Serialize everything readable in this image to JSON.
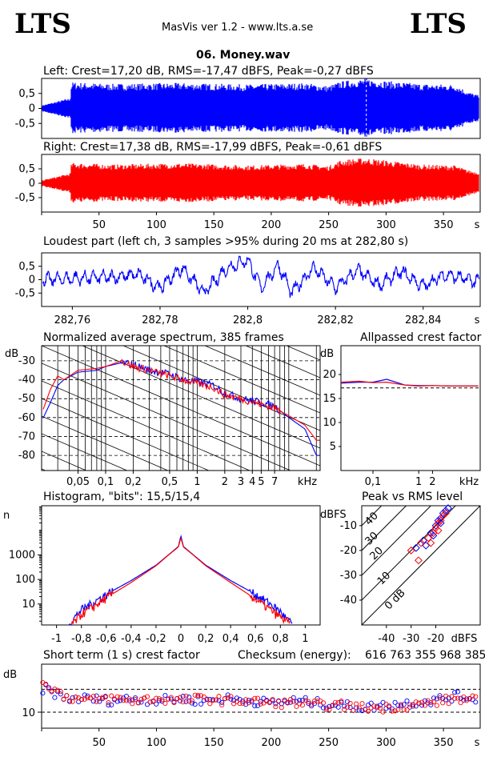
{
  "header": {
    "logo_left": "LTS",
    "logo_right": "LTS",
    "app_info": "MasVis ver 1.2 - www.lts.a.se",
    "track_title": "06. Money.wav"
  },
  "colors": {
    "left": "#0000ff",
    "right": "#ff0000",
    "axis": "#000000",
    "background": "#ffffff"
  },
  "chart_data": [
    {
      "id": "left_waveform",
      "type": "line",
      "title": "Left: Crest=17,20 dB, RMS=-17,47 dBFS, Peak=-0,27 dBFS",
      "ylim": [
        -1,
        1
      ],
      "yticks": [
        "0,5",
        "0",
        "-0,5"
      ],
      "xlim": [
        0,
        382
      ],
      "marker_at_s": 282.8,
      "series": [
        {
          "color": "#0000ff",
          "x": [
            0,
            10,
            25,
            26,
            60,
            120,
            180,
            230,
            250,
            260,
            270,
            282.8,
            300,
            330,
            360,
            372,
            380
          ],
          "amplitude": [
            0.1,
            0.2,
            0.35,
            0.88,
            0.82,
            0.85,
            0.8,
            0.85,
            0.75,
            0.9,
            0.95,
            1.0,
            0.92,
            0.82,
            0.8,
            0.55,
            0.45
          ]
        }
      ]
    },
    {
      "id": "right_waveform",
      "type": "line",
      "title": "Right: Crest=17,38 dB, RMS=-17,99 dBFS, Peak=-0,61 dBFS",
      "ylim": [
        -1,
        1
      ],
      "yticks": [
        "0,5",
        "0",
        "-0,5"
      ],
      "xlim": [
        0,
        382
      ],
      "xticks": [
        "50",
        "100",
        "150",
        "200",
        "250",
        "300",
        "350"
      ],
      "xunit": "s",
      "series": [
        {
          "color": "#ff0000",
          "x": [
            0,
            10,
            25,
            26,
            60,
            120,
            180,
            230,
            250,
            260,
            270,
            282.8,
            300,
            330,
            360,
            372,
            380
          ],
          "amplitude": [
            0.1,
            0.2,
            0.35,
            0.72,
            0.65,
            0.7,
            0.62,
            0.68,
            0.6,
            0.8,
            0.85,
            0.88,
            0.8,
            0.65,
            0.62,
            0.45,
            0.4
          ]
        }
      ]
    },
    {
      "id": "loudest_part",
      "type": "line",
      "title": "Loudest part (left  ch, 3 samples >95% during 20 ms at 282,80 s)",
      "ylim": [
        -1,
        1
      ],
      "yticks": [
        "0,5",
        "0",
        "-0,5"
      ],
      "xlim": [
        282.753,
        282.853
      ],
      "xticks": [
        "282,76",
        "282,78",
        "282,8",
        "282,82",
        "282,84"
      ],
      "xunit": "s",
      "series": [
        {
          "color": "#0000ff",
          "x": [
            282.753,
            282.76,
            282.77,
            282.775,
            282.78,
            282.785,
            282.79,
            282.795,
            282.8,
            282.803,
            282.807,
            282.81,
            282.815,
            282.82,
            282.825,
            282.83,
            282.835,
            282.84,
            282.845,
            282.853
          ],
          "y": [
            0.0,
            0.05,
            0.1,
            0.2,
            -0.3,
            0.45,
            -0.5,
            0.4,
            0.75,
            -0.3,
            0.55,
            -0.5,
            0.45,
            -0.3,
            0.35,
            -0.2,
            0.3,
            -0.25,
            0.2,
            -0.1
          ]
        }
      ]
    },
    {
      "id": "avg_spectrum",
      "type": "line",
      "title": "Normalized average spectrum, 385 frames",
      "ylabel": "dB",
      "ylim": [
        -88,
        -22
      ],
      "yticks": [
        "-30",
        "-40",
        "-50",
        "-60",
        "-70",
        "-80"
      ],
      "xscale": "log",
      "xlim_khz": [
        0.02,
        22
      ],
      "xticks": [
        "0,05",
        "0,1",
        "0,2",
        "0,5",
        "1",
        "2",
        "3",
        "4",
        "5",
        "7"
      ],
      "xunit": "kHz",
      "series": [
        {
          "color": "#0000ff",
          "x_khz": [
            0.02,
            0.025,
            0.03,
            0.035,
            0.05,
            0.08,
            0.1,
            0.15,
            0.2,
            0.3,
            0.5,
            0.7,
            1,
            1.5,
            2,
            3,
            5,
            7,
            10,
            15,
            20
          ],
          "y": [
            -62,
            -52,
            -43,
            -40,
            -36,
            -35,
            -33,
            -31,
            -32,
            -35,
            -37,
            -40,
            -41,
            -43,
            -47,
            -50,
            -52,
            -54,
            -60,
            -66,
            -80
          ]
        },
        {
          "color": "#ff0000",
          "x_khz": [
            0.02,
            0.025,
            0.03,
            0.035,
            0.05,
            0.08,
            0.1,
            0.15,
            0.2,
            0.3,
            0.5,
            0.7,
            1,
            1.5,
            2,
            3,
            5,
            7,
            10,
            15,
            20
          ],
          "y": [
            -58,
            -45,
            -38,
            -40,
            -35,
            -34,
            -33,
            -30,
            -33,
            -35,
            -38,
            -40,
            -42,
            -44,
            -48,
            -50,
            -53,
            -55,
            -59,
            -64,
            -72
          ]
        }
      ]
    },
    {
      "id": "allpassed_crest",
      "type": "line",
      "title": "Allpassed crest factor",
      "ylabel": "dB",
      "ylim": [
        0,
        26
      ],
      "yticks": [
        "20",
        "15",
        "10",
        "5"
      ],
      "xscale": "log",
      "xlim_khz": [
        0.02,
        22
      ],
      "xticks": [
        "0,1",
        "1",
        "2"
      ],
      "xunit": "kHz",
      "reference_db": 17.2,
      "series": [
        {
          "color": "#0000ff",
          "x_khz": [
            0.02,
            0.05,
            0.1,
            0.2,
            0.5,
            1,
            2,
            5,
            10,
            20
          ],
          "y": [
            18.2,
            18.4,
            18.4,
            19.0,
            17.8,
            17.7,
            17.7,
            17.6,
            17.6,
            17.6
          ]
        },
        {
          "color": "#ff0000",
          "x_khz": [
            0.02,
            0.05,
            0.1,
            0.2,
            0.5,
            1,
            2,
            5,
            10,
            20
          ],
          "y": [
            18.4,
            18.6,
            18.3,
            18.4,
            17.8,
            17.6,
            17.7,
            17.6,
            17.6,
            17.6
          ]
        }
      ]
    },
    {
      "id": "histogram",
      "type": "line",
      "title": "Histogram, \"bits\": 15,5/15,4",
      "ylabel": "n",
      "yscale": "log",
      "ylim": [
        1.4,
        100000
      ],
      "yticks": [
        "1000",
        "100",
        "10"
      ],
      "xlim": [
        -1.12,
        1.12
      ],
      "xticks": [
        "-1",
        "-0,8",
        "-0,6",
        "-0,4",
        "-0,2",
        "0",
        "0,2",
        "0,4",
        "0,6",
        "0,8",
        "1"
      ],
      "series": [
        {
          "color": "#0000ff",
          "x": [
            -0.9,
            -0.85,
            -0.8,
            -0.7,
            -0.6,
            -0.4,
            -0.2,
            -0.1,
            -0.02,
            0,
            0.02,
            0.1,
            0.2,
            0.4,
            0.6,
            0.7,
            0.8,
            0.85,
            0.9
          ],
          "y": [
            1.5,
            3,
            6,
            12,
            25,
            90,
            380,
            1000,
            2200,
            6000,
            2200,
            1000,
            380,
            90,
            25,
            12,
            5,
            2.5,
            1.5
          ]
        },
        {
          "color": "#ff0000",
          "x": [
            -0.88,
            -0.85,
            -0.8,
            -0.7,
            -0.6,
            -0.4,
            -0.2,
            -0.1,
            -0.02,
            0,
            0.02,
            0.1,
            0.2,
            0.4,
            0.6,
            0.7,
            0.8,
            0.85,
            0.88
          ],
          "y": [
            1.5,
            2,
            4,
            8,
            18,
            75,
            360,
            980,
            2100,
            5000,
            2100,
            980,
            360,
            75,
            16,
            7,
            3,
            2,
            1.5
          ]
        }
      ]
    },
    {
      "id": "peak_vs_rms",
      "type": "scatter",
      "title": "Peak vs RMS level",
      "ylabel": "dBFS",
      "ylim": [
        -50,
        -2
      ],
      "yticks": [
        "-10",
        "-20",
        "-30",
        "-40"
      ],
      "xlim": [
        -50,
        -2
      ],
      "xticks": [
        "-40",
        "-30",
        "-20"
      ],
      "xunit": "dBFS",
      "diagonal_labels": [
        "40",
        "30",
        "20",
        "10",
        "0 dB"
      ],
      "series": [
        {
          "color": "#0000ff",
          "x": [
            -28,
            -25,
            -22,
            -20,
            -19,
            -18,
            -17,
            -16,
            -15,
            -24,
            -21,
            -18
          ],
          "y": [
            -19,
            -16,
            -13,
            -10,
            -8,
            -7,
            -5,
            -4,
            -3,
            -18,
            -14,
            -9
          ]
        },
        {
          "color": "#ff0000",
          "x": [
            -30,
            -26,
            -23,
            -21,
            -20,
            -19,
            -18,
            -17,
            -16,
            -22,
            -19,
            -27
          ],
          "y": [
            -20,
            -17,
            -15,
            -13,
            -11,
            -9,
            -8,
            -6,
            -5,
            -17,
            -12,
            -24
          ]
        }
      ]
    },
    {
      "id": "short_term_crest",
      "type": "scatter",
      "title": "Short term (1 s) crest factor",
      "checksum_label": "Checksum (energy):",
      "checksum_value": "616 763 355 968 385",
      "ylabel": "dB",
      "ylim": [
        3,
        31
      ],
      "yticks": [
        "10"
      ],
      "xlim": [
        0,
        382
      ],
      "xticks": [
        "50",
        "100",
        "150",
        "200",
        "250",
        "300",
        "350"
      ],
      "xunit": "s",
      "reference_db": [
        10,
        20
      ],
      "series": [
        {
          "color": "#0000ff",
          "x": [
            5,
            20,
            40,
            60,
            80,
            100,
            120,
            140,
            160,
            180,
            200,
            220,
            240,
            260,
            280,
            300,
            320,
            340,
            360,
            380
          ],
          "y": [
            20,
            16,
            16,
            15,
            16,
            15,
            16,
            15,
            16,
            15,
            14,
            15,
            14,
            13,
            12,
            13,
            14,
            15,
            17,
            16
          ]
        },
        {
          "color": "#ff0000",
          "x": [
            5,
            20,
            40,
            60,
            80,
            100,
            120,
            140,
            160,
            180,
            200,
            220,
            240,
            260,
            280,
            300,
            320,
            340,
            360,
            380
          ],
          "y": [
            22,
            17,
            15,
            16,
            15,
            16,
            15,
            16,
            15,
            15,
            14,
            14,
            13,
            13,
            12,
            12,
            13,
            14,
            16,
            15
          ]
        }
      ]
    }
  ]
}
